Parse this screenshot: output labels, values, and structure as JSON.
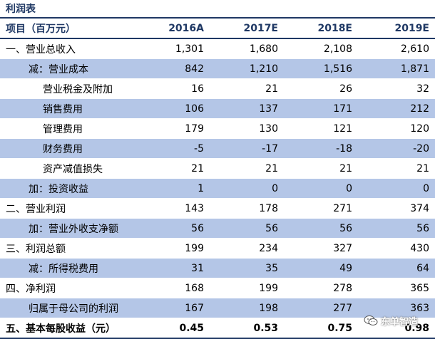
{
  "title": "利润表",
  "header": {
    "label": "项目（百万元）",
    "years": [
      "2016A",
      "2017E",
      "2018E",
      "2019E"
    ]
  },
  "rows": [
    {
      "label": "一、营业总收入",
      "values": [
        "1,301",
        "1,680",
        "2,108",
        "2,610"
      ]
    },
    {
      "label": "减：营业成本",
      "values": [
        "842",
        "1,210",
        "1,516",
        "1,871"
      ]
    },
    {
      "label": "营业税金及附加",
      "values": [
        "16",
        "21",
        "26",
        "32"
      ]
    },
    {
      "label": "销售费用",
      "values": [
        "106",
        "137",
        "171",
        "212"
      ]
    },
    {
      "label": "管理费用",
      "values": [
        "179",
        "130",
        "121",
        "120"
      ]
    },
    {
      "label": "财务费用",
      "values": [
        "-5",
        "-17",
        "-18",
        "-20"
      ]
    },
    {
      "label": "资产减值损失",
      "values": [
        "21",
        "21",
        "21",
        "21"
      ]
    },
    {
      "label": "加：投资收益",
      "values": [
        "1",
        "0",
        "0",
        "0"
      ]
    },
    {
      "label": "二、营业利润",
      "values": [
        "143",
        "178",
        "271",
        "374"
      ]
    },
    {
      "label": "加：营业外收支净额",
      "values": [
        "56",
        "56",
        "56",
        "56"
      ]
    },
    {
      "label": "三、利润总额",
      "values": [
        "199",
        "234",
        "327",
        "430"
      ]
    },
    {
      "label": "减：所得税费用",
      "values": [
        "31",
        "35",
        "49",
        "64"
      ]
    },
    {
      "label": "四、净利润",
      "values": [
        "168",
        "199",
        "278",
        "365"
      ]
    },
    {
      "label": "归属于母公司的利润",
      "values": [
        "167",
        "198",
        "277",
        "363"
      ]
    },
    {
      "label": "五、基本每股收益（元）",
      "values": [
        "0.45",
        "0.53",
        "0.75",
        "0.98"
      ]
    }
  ],
  "watermark": {
    "text": "东单智造",
    "icon": "wechat-icon"
  },
  "colors": {
    "header_text": "#1f3864",
    "rule": "#1f3864",
    "shade": "#b4c6e7"
  }
}
